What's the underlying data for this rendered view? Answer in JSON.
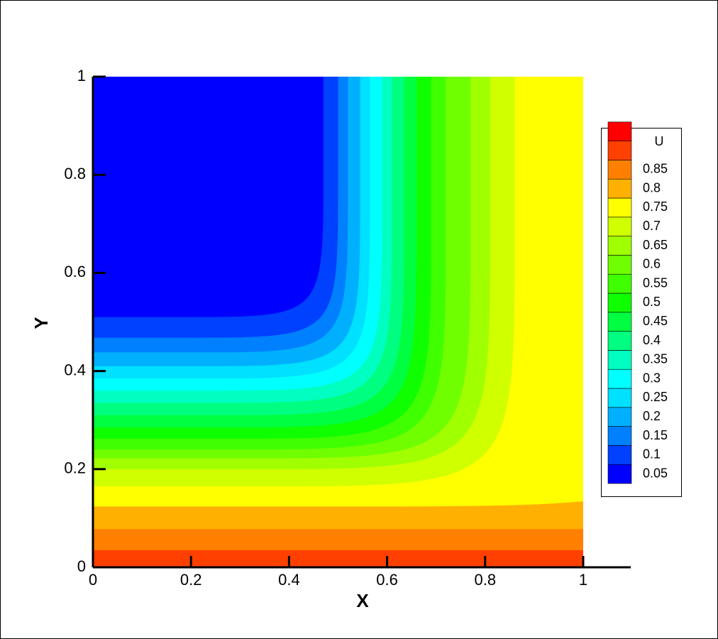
{
  "chart_data": {
    "type": "contour",
    "variable": "U",
    "x_label": "X",
    "y_label": "Y",
    "xlim": [
      0,
      1.1
    ],
    "xticks": [
      0,
      0.2,
      0.4,
      0.6,
      0.8,
      1
    ],
    "ylim": [
      0,
      1
    ],
    "yticks": [
      0,
      0.2,
      0.4,
      0.6,
      0.8,
      1
    ],
    "levels": [
      0.05,
      0.1,
      0.15,
      0.2,
      0.25,
      0.3,
      0.35,
      0.4,
      0.45,
      0.5,
      0.55,
      0.6,
      0.65,
      0.7,
      0.75,
      0.8,
      0.85
    ],
    "colors": [
      "#0000ff",
      "#0040ff",
      "#0080ff",
      "#00b0ff",
      "#00e0ff",
      "#00ffff",
      "#00ffc0",
      "#00ff80",
      "#00ff40",
      "#10ff00",
      "#40ff00",
      "#70ff00",
      "#a0ff00",
      "#d0ff00",
      "#ffff00",
      "#ffb000",
      "#ff8000",
      "#ff4000",
      "#ff0000"
    ]
  }
}
